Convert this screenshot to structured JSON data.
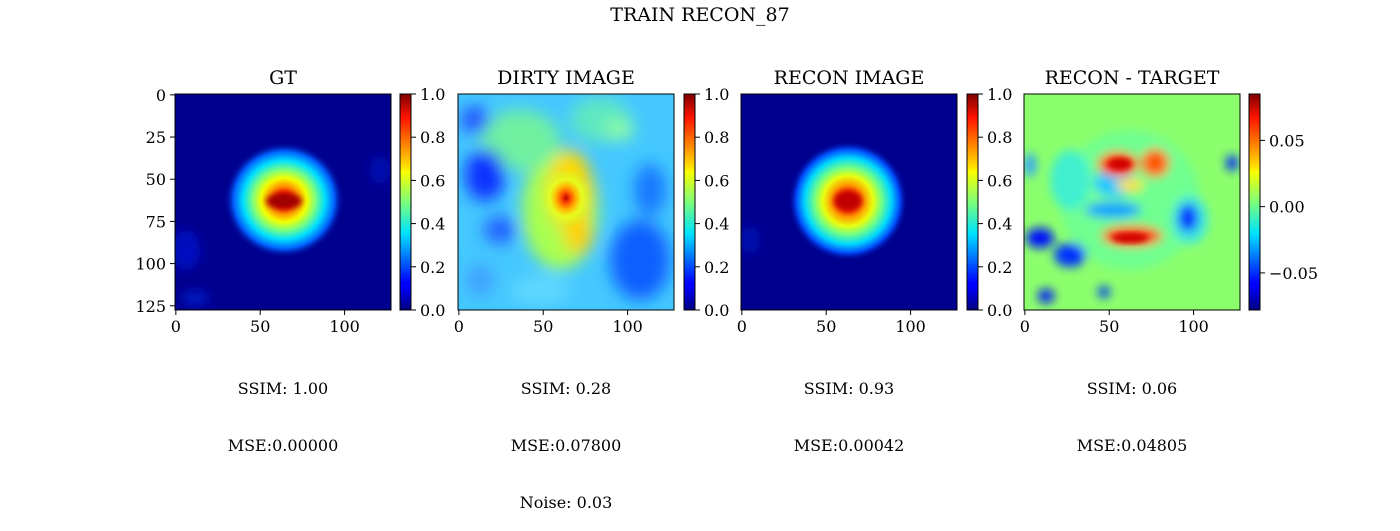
{
  "figure": {
    "suptitle": "TRAIN RECON_87"
  },
  "chart_data": [
    {
      "type": "heatmap",
      "title": "GT",
      "colormap": "jet",
      "xlim": [
        0,
        127
      ],
      "ylim": [
        127,
        0
      ],
      "xticks": [
        0,
        50,
        100
      ],
      "yticks": [
        0,
        25,
        50,
        75,
        100,
        125
      ],
      "colorbar": {
        "range": [
          0.0,
          1.0
        ],
        "ticks": [
          "0.0",
          "0.2",
          "0.4",
          "0.6",
          "0.8",
          "1.0"
        ]
      },
      "metrics": {
        "ssim": "SSIM: 1.00",
        "mse": "MSE:0.00000"
      },
      "blob": {
        "cx": 64,
        "cy": 63,
        "peak": 1.0,
        "rx": 22,
        "ry": 20
      }
    },
    {
      "type": "heatmap",
      "title": "DIRTY IMAGE",
      "colormap": "jet",
      "xlim": [
        0,
        127
      ],
      "ylim": [
        127,
        0
      ],
      "xticks": [
        0,
        50,
        100
      ],
      "colorbar": {
        "range": [
          0.0,
          1.0
        ],
        "ticks": [
          "0.0",
          "0.2",
          "0.4",
          "0.6",
          "0.8",
          "1.0"
        ]
      },
      "metrics": {
        "ssim": "SSIM: 0.28",
        "mse": "MSE:0.07800",
        "noise": "Noise: 0.03"
      }
    },
    {
      "type": "heatmap",
      "title": "RECON IMAGE",
      "colormap": "jet",
      "xlim": [
        0,
        127
      ],
      "ylim": [
        127,
        0
      ],
      "xticks": [
        0,
        50,
        100
      ],
      "colorbar": {
        "range": [
          0.0,
          1.0
        ],
        "ticks": [
          "0.0",
          "0.2",
          "0.4",
          "0.6",
          "0.8",
          "1.0"
        ]
      },
      "metrics": {
        "ssim": "SSIM: 0.93",
        "mse": "MSE:0.00042"
      }
    },
    {
      "type": "heatmap",
      "title": "RECON - TARGET",
      "colormap": "jet",
      "xlim": [
        0,
        127
      ],
      "ylim": [
        127,
        0
      ],
      "xticks": [
        0,
        50,
        100
      ],
      "colorbar": {
        "range": [
          -0.078,
          0.085
        ],
        "ticks": [
          "0.05",
          "0.00",
          "−0.05"
        ],
        "tick_values": [
          0.05,
          0.0,
          -0.05
        ]
      },
      "metrics": {
        "ssim": "SSIM: 0.06",
        "mse": "MSE:0.04805"
      }
    }
  ]
}
